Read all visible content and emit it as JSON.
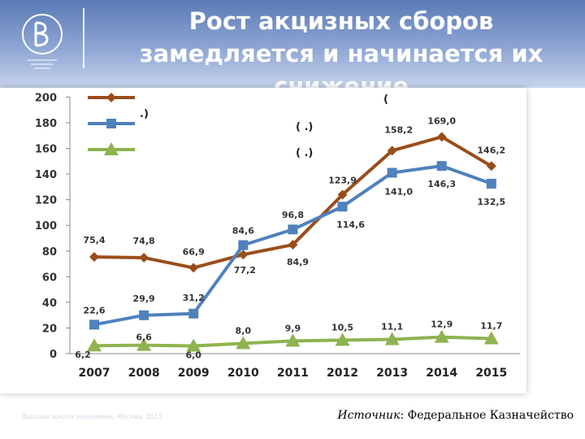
{
  "header": {
    "title_line1": "Рост акцизных сборов",
    "title_line2": "замедляется   и начинается их",
    "title_line3": "снижение"
  },
  "legend": [
    {
      "text": ".)"
    },
    {
      "text": "(            .)"
    },
    {
      "text": "(            .)"
    }
  ],
  "legend_extra": "(",
  "footer": {
    "left_text": "Высшая школа экономики, Москва, 2015",
    "source_label": "Источник",
    "source_text": ": Федеральное Казначейство"
  },
  "colors": {
    "header_bg": "#6f8ec5",
    "series_total": "#9a4d1b",
    "series_2": "#4f81bd",
    "series_3": "#8fb34f"
  },
  "icons": {
    "logo": "hse-emblem"
  },
  "chart_data": {
    "type": "line",
    "x": [
      "2007",
      "2008",
      "2009",
      "2010",
      "2011",
      "2012",
      "2013",
      "2014",
      "2015"
    ],
    "ylim": [
      0,
      200
    ],
    "yticks": [
      "0",
      "20",
      "40",
      "60",
      "80",
      "100",
      "120",
      "140",
      "160",
      "180",
      "200"
    ],
    "grid": false,
    "legend_position": "top-left",
    "series": [
      {
        "color": "#9a4d1b",
        "marker": "diamond",
        "values": [
          75.4,
          74.8,
          66.9,
          77.2,
          84.9,
          123.9,
          158.2,
          169.0,
          146.2
        ],
        "labels": [
          "75,4",
          "74,8",
          "66,9",
          "77,2",
          "84,9",
          "123,9",
          "158,2",
          "169,0",
          "146,2"
        ]
      },
      {
        "color": "#4f81bd",
        "marker": "square",
        "values": [
          22.6,
          29.9,
          31.2,
          84.6,
          96.8,
          114.6,
          141.0,
          146.3,
          132.5
        ],
        "labels": [
          "22,6",
          "29,9",
          "31,2",
          "84,6",
          "96,8",
          "114,6",
          "141,0",
          "146,3",
          "132,5"
        ]
      },
      {
        "color": "#8fb34f",
        "marker": "triangle",
        "values": [
          6.2,
          6.6,
          6.0,
          8.0,
          9.9,
          10.5,
          11.1,
          12.9,
          11.7
        ],
        "labels": [
          "6,2",
          "6,6",
          "6,0",
          "8,0",
          "9,9",
          "10,5",
          "11,1",
          "12,9",
          "11,7"
        ]
      }
    ]
  }
}
